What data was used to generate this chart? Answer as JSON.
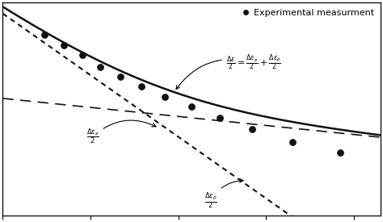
{
  "background_color": "#ffffff",
  "legend_label": "Experimental measurment",
  "dot_color": "#111111",
  "scatter_x": [
    30,
    50,
    80,
    130,
    220,
    380,
    700,
    1400,
    3000,
    7000,
    20000,
    70000
  ],
  "scatter_y": [
    0.02,
    0.016,
    0.013,
    0.01,
    0.008,
    0.0065,
    0.0052,
    0.0042,
    0.0033,
    0.0026,
    0.00195,
    0.00155
  ],
  "label_total": "$\\frac{\\Delta\\varepsilon}{2} = \\frac{\\Delta\\varepsilon_e}{2} + \\frac{\\Delta\\varepsilon_p}{2}$",
  "label_elastic": "$\\frac{\\Delta\\varepsilon_e}{2}$",
  "label_plastic": "$\\frac{\\Delta\\varepsilon_p}{2}$",
  "b": -0.085,
  "c": -0.58,
  "sigma_f_E": 0.0065,
  "eps_f": 0.18,
  "x_min": 10,
  "x_max": 200000,
  "y_min": 0.0004,
  "y_max": 0.04
}
